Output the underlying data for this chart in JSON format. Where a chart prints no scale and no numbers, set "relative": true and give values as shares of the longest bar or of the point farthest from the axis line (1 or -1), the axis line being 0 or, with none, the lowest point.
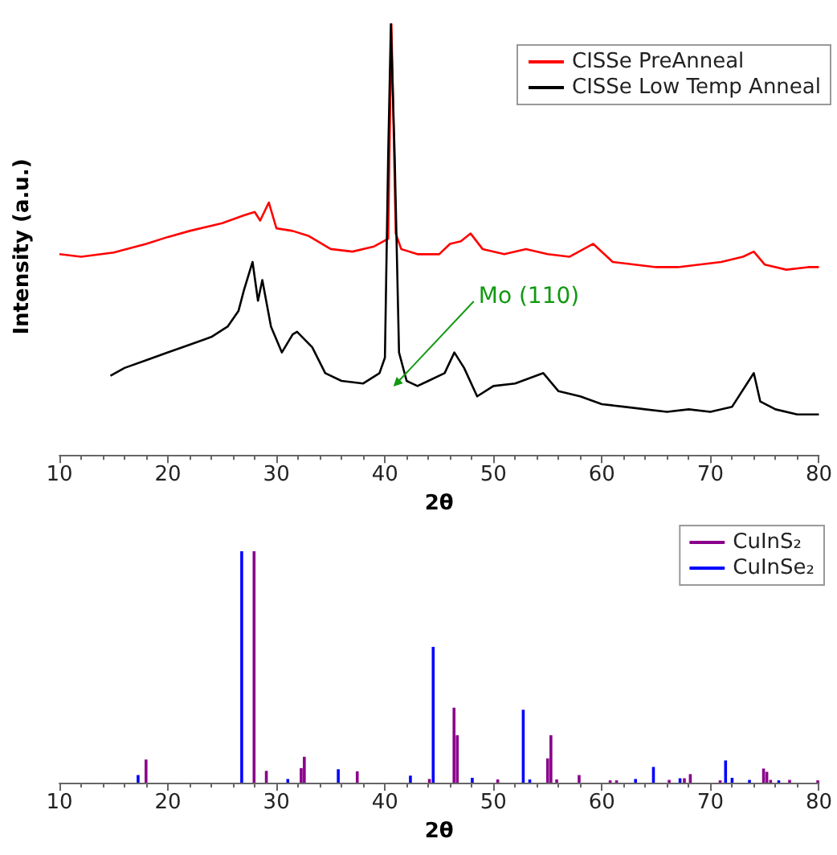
{
  "chart_data": [
    {
      "type": "line",
      "xlabel": "2θ",
      "ylabel": "Intensity (a.u.)",
      "relative": true,
      "xlim": [
        10,
        80
      ],
      "xticks": [
        10,
        20,
        30,
        40,
        50,
        60,
        70,
        80
      ],
      "legend": "top right",
      "marker": "none",
      "grid": false,
      "annotations": [
        "Mo (110)"
      ],
      "series": [
        {
          "name": "CISSe PreAnneal",
          "color": "#ff0000",
          "x": [
            10,
            12,
            15,
            18,
            20,
            22,
            25,
            27,
            28,
            28.5,
            29.3,
            30,
            31.5,
            33,
            35,
            37,
            39,
            40.3,
            40.6,
            41,
            41.5,
            43,
            45,
            46,
            47,
            47.9,
            49,
            51,
            53,
            55,
            57,
            59.2,
            61,
            63,
            65,
            67,
            69,
            71,
            73,
            74,
            75,
            77,
            79,
            80
          ],
          "values": [
            0.466,
            0.46,
            0.47,
            0.49,
            0.506,
            0.52,
            0.538,
            0.556,
            0.564,
            0.544,
            0.586,
            0.526,
            0.52,
            0.508,
            0.478,
            0.472,
            0.484,
            0.502,
            1.0,
            0.514,
            0.478,
            0.466,
            0.466,
            0.49,
            0.496,
            0.514,
            0.478,
            0.466,
            0.478,
            0.466,
            0.46,
            0.49,
            0.448,
            0.442,
            0.436,
            0.436,
            0.442,
            0.448,
            0.46,
            0.472,
            0.442,
            0.43,
            0.436,
            0.436
          ]
        },
        {
          "name": "CISSe Low Temp Anneal",
          "color": "#000000",
          "x": [
            14.7,
            16,
            18,
            20,
            22,
            24,
            25.5,
            26.5,
            27,
            27.8,
            28.3,
            28.7,
            29.5,
            30.5,
            31.5,
            31.9,
            33.3,
            34.5,
            36,
            38,
            39.5,
            40,
            40.3,
            40.55,
            40.9,
            41.3,
            42,
            43,
            44,
            45.5,
            46.4,
            47.3,
            48.5,
            50,
            52,
            54.6,
            56,
            58,
            60,
            62,
            64,
            66,
            68,
            70,
            72,
            74,
            74.6,
            76,
            78,
            80
          ],
          "values": [
            0.184,
            0.202,
            0.22,
            0.238,
            0.256,
            0.274,
            0.298,
            0.334,
            0.382,
            0.448,
            0.358,
            0.406,
            0.298,
            0.238,
            0.28,
            0.286,
            0.25,
            0.19,
            0.172,
            0.166,
            0.19,
            0.226,
            0.694,
            1.0,
            0.694,
            0.238,
            0.172,
            0.16,
            0.172,
            0.19,
            0.238,
            0.202,
            0.136,
            0.16,
            0.166,
            0.19,
            0.148,
            0.136,
            0.118,
            0.112,
            0.106,
            0.1,
            0.106,
            0.1,
            0.112,
            0.19,
            0.124,
            0.106,
            0.094,
            0.094
          ]
        }
      ]
    },
    {
      "type": "bar",
      "xlabel": "2θ",
      "relative": true,
      "xlim": [
        10,
        80
      ],
      "xticks": [
        10,
        20,
        30,
        40,
        50,
        60,
        70,
        80
      ],
      "legend": "top right",
      "grid": false,
      "series": [
        {
          "name": "CuInS₂",
          "color": "#8b008b",
          "x": [
            17.98,
            27.94,
            29.07,
            32.28,
            32.57,
            37.45,
            44.1,
            46.37,
            46.67,
            50.4,
            55.0,
            55.3,
            55.83,
            57.9,
            60.76,
            61.35,
            66.2,
            67.6,
            68.15,
            70.9,
            74.9,
            75.2,
            75.55,
            77.3,
            79.9
          ],
          "values": [
            0.1,
            1.0,
            0.051,
            0.063,
            0.112,
            0.049,
            0.016,
            0.324,
            0.205,
            0.014,
            0.105,
            0.205,
            0.014,
            0.033,
            0.01,
            0.01,
            0.012,
            0.019,
            0.037,
            0.01,
            0.061,
            0.047,
            0.012,
            0.012,
            0.01
          ]
        },
        {
          "name": "CuInSe₂",
          "color": "#0000ff",
          "x": [
            17.25,
            26.8,
            31.05,
            35.7,
            42.35,
            44.45,
            48.05,
            52.75,
            53.35,
            63.1,
            64.75,
            67.2,
            71.4,
            72.0,
            73.6,
            76.3
          ],
          "values": [
            0.033,
            1.0,
            0.016,
            0.058,
            0.03,
            0.587,
            0.021,
            0.315,
            0.014,
            0.016,
            0.068,
            0.019,
            0.096,
            0.021,
            0.012,
            0.01
          ]
        }
      ]
    }
  ]
}
